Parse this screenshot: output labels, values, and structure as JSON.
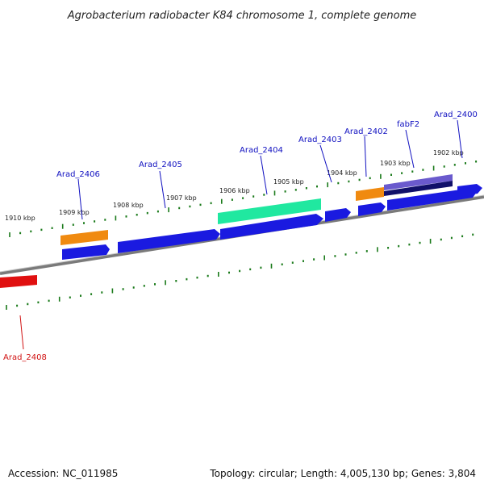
{
  "title": "Agrobacterium radiobacter K84 chromosome 1, complete genome",
  "footer": {
    "accession": "Accession: NC_011985",
    "topology": "Topology: circular; Length: 4,005,130 bp; Genes: 3,804"
  },
  "scale_ticks": [
    "1910 kbp",
    "1909 kbp",
    "1908 kbp",
    "1907 kbp",
    "1906 kbp",
    "1905 kbp",
    "1904 kbp",
    "1903 kbp",
    "1902 kbp"
  ],
  "gene_labels": [
    "Arad_2406",
    "Arad_2405",
    "Arad_2404",
    "Arad_2403",
    "Arad_2402",
    "fabF2",
    "Arad_2400",
    "Arad_2408"
  ],
  "colors": {
    "blue_gene": "#1a1ae0",
    "orange_gene": "#f08a10",
    "teal_gene": "#20e8a0",
    "purple_gene": "#6a5acd",
    "navy_gene": "#10106a",
    "red_gene": "#e01010",
    "backbone": "#7a7a7a",
    "ticks": "#1a7a1a",
    "label_blue": "#1010c0",
    "label_red": "#d01010"
  }
}
